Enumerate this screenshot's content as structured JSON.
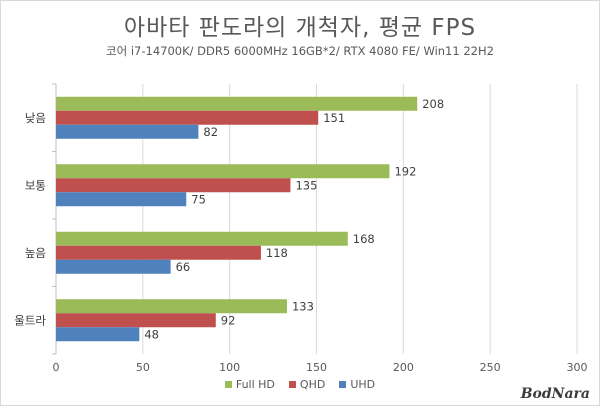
{
  "chart_data": {
    "type": "bar",
    "orientation": "horizontal",
    "title": "아바타 판도라의 개척자, 평균 FPS",
    "subtitle": "코어 i7-14700K/ DDR5 6000MHz 16GB*2/ RTX 4080 FE/ Win11 22H2",
    "categories": [
      "낮음",
      "보통",
      "높음",
      "울트라"
    ],
    "series": [
      {
        "name": "Full HD",
        "color": "#9bbb59",
        "values": [
          208,
          192,
          168,
          133
        ]
      },
      {
        "name": "QHD",
        "color": "#c0504d",
        "values": [
          151,
          135,
          118,
          92
        ]
      },
      {
        "name": "UHD",
        "color": "#4f81bd",
        "values": [
          82,
          75,
          66,
          48
        ]
      }
    ],
    "xlim": [
      0,
      300
    ],
    "xticks": [
      0,
      50,
      100,
      150,
      200,
      250,
      300
    ],
    "grid": "vertical",
    "legend_position": "bottom"
  },
  "watermark": "BodNara"
}
